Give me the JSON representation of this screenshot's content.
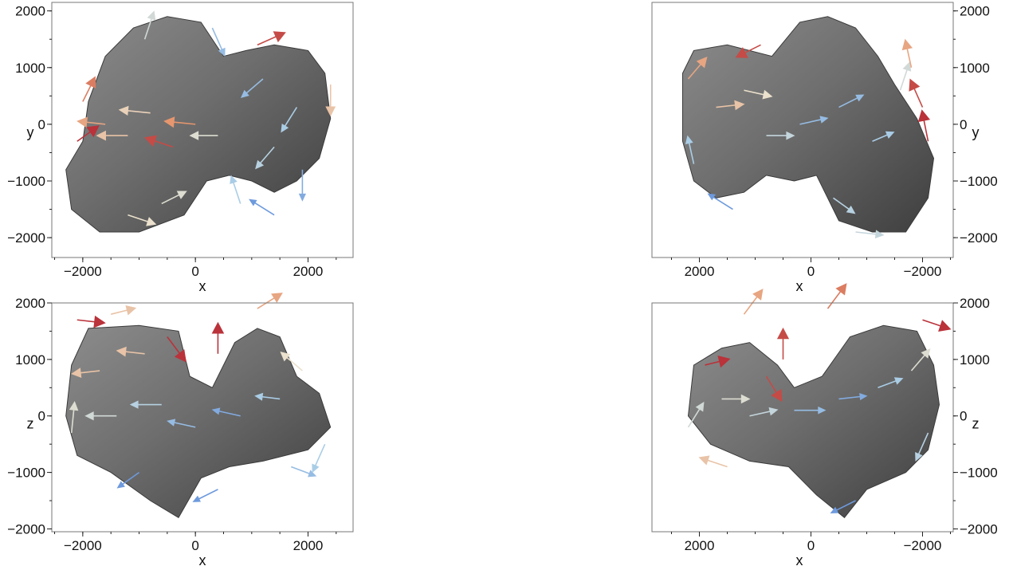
{
  "chart_data": [
    {
      "type": "vector-field",
      "view": "top",
      "xlabel": "x",
      "ylabel": "y",
      "xlim": [
        -2550,
        2800
      ],
      "ylim": [
        -2350,
        2150
      ],
      "x_reversed": false,
      "y_axis_side": "left",
      "xticks": [
        -2000,
        0,
        2000
      ],
      "xtick_labels": [
        "−2000",
        "0",
        "2000"
      ],
      "yticks": [
        2000,
        1000,
        0,
        -1000,
        -2000
      ],
      "ytick_labels": [
        "2000",
        "1000",
        "0",
        "−1000",
        "−2000"
      ],
      "body": [
        [
          -2200,
          -1500
        ],
        [
          -2300,
          -800
        ],
        [
          -2000,
          -300
        ],
        [
          -1900,
          400
        ],
        [
          -1600,
          1200
        ],
        [
          -1100,
          1700
        ],
        [
          -500,
          1900
        ],
        [
          100,
          1800
        ],
        [
          500,
          1200
        ],
        [
          900,
          1300
        ],
        [
          1400,
          1400
        ],
        [
          2000,
          1300
        ],
        [
          2300,
          900
        ],
        [
          2400,
          100
        ],
        [
          2200,
          -600
        ],
        [
          1800,
          -1000
        ],
        [
          1400,
          -1200
        ],
        [
          1000,
          -1000
        ],
        [
          600,
          -900
        ],
        [
          200,
          -1000
        ],
        [
          -200,
          -1600
        ],
        [
          -1000,
          -1900
        ],
        [
          -1700,
          -1900
        ]
      ],
      "arrows": [
        {
          "x": -2100,
          "y": -300,
          "u": 0.7,
          "v": 0.5,
          "m": 0.95
        },
        {
          "x": -2000,
          "y": 400,
          "u": 0.4,
          "v": 0.8,
          "m": 0.8
        },
        {
          "x": -1600,
          "y": 0,
          "u": -0.9,
          "v": 0.1,
          "m": 0.7
        },
        {
          "x": -1200,
          "y": -200,
          "u": -1.0,
          "v": 0.0,
          "m": 0.6
        },
        {
          "x": -800,
          "y": 200,
          "u": -1.0,
          "v": 0.1,
          "m": 0.55
        },
        {
          "x": -400,
          "y": -400,
          "u": -0.9,
          "v": 0.3,
          "m": 0.9
        },
        {
          "x": 0,
          "y": 0,
          "u": -1.0,
          "v": 0.1,
          "m": 0.75
        },
        {
          "x": 400,
          "y": -200,
          "u": -0.9,
          "v": 0.0,
          "m": 0.45
        },
        {
          "x": -1200,
          "y": -1600,
          "u": 0.9,
          "v": -0.3,
          "m": 0.5
        },
        {
          "x": -600,
          "y": -1400,
          "u": 0.8,
          "v": 0.4,
          "m": 0.45
        },
        {
          "x": 1200,
          "y": 800,
          "u": -0.7,
          "v": -0.6,
          "m": 0.2
        },
        {
          "x": 1800,
          "y": 300,
          "u": -0.5,
          "v": -0.8,
          "m": 0.25
        },
        {
          "x": 1400,
          "y": -400,
          "u": -0.6,
          "v": -0.7,
          "m": 0.3
        },
        {
          "x": 1900,
          "y": -800,
          "u": 0.0,
          "v": -1.0,
          "m": 0.15
        },
        {
          "x": 2400,
          "y": 700,
          "u": 0.0,
          "v": -1.0,
          "m": 0.6
        },
        {
          "x": 1100,
          "y": 1400,
          "u": 0.9,
          "v": 0.4,
          "m": 0.9
        },
        {
          "x": 300,
          "y": 1700,
          "u": 0.4,
          "v": -0.9,
          "m": 0.2
        },
        {
          "x": -900,
          "y": 1500,
          "u": 0.3,
          "v": 0.9,
          "m": 0.4
        },
        {
          "x": 800,
          "y": -1400,
          "u": -0.3,
          "v": 0.9,
          "m": 0.25
        },
        {
          "x": 1400,
          "y": -1600,
          "u": -0.8,
          "v": 0.5,
          "m": 0.1
        }
      ]
    },
    {
      "type": "vector-field",
      "view": "bottom",
      "xlabel": "x",
      "ylabel": "y",
      "xlim": [
        2850,
        -2550
      ],
      "ylim": [
        -2350,
        2150
      ],
      "x_reversed": true,
      "y_axis_side": "right",
      "xticks": [
        2000,
        0,
        -2000
      ],
      "xtick_labels": [
        "2000",
        "0",
        "−2000"
      ],
      "yticks": [
        2000,
        1000,
        0,
        -1000,
        -2000
      ],
      "ytick_labels": [
        "2000",
        "1000",
        "0",
        "−1000",
        "−2000"
      ],
      "body": [
        [
          2300,
          900
        ],
        [
          2100,
          1300
        ],
        [
          1500,
          1400
        ],
        [
          700,
          1200
        ],
        [
          200,
          1800
        ],
        [
          -300,
          1900
        ],
        [
          -800,
          1700
        ],
        [
          -1200,
          1200
        ],
        [
          -1500,
          700
        ],
        [
          -1900,
          100
        ],
        [
          -2200,
          -600
        ],
        [
          -2100,
          -1300
        ],
        [
          -1700,
          -1900
        ],
        [
          -1100,
          -1900
        ],
        [
          -500,
          -1700
        ],
        [
          -100,
          -900
        ],
        [
          300,
          -1000
        ],
        [
          800,
          -900
        ],
        [
          1200,
          -1200
        ],
        [
          1700,
          -1300
        ],
        [
          2100,
          -1000
        ],
        [
          2300,
          -300
        ]
      ],
      "arrows": [
        {
          "x": 2200,
          "y": 800,
          "u": -0.6,
          "v": 0.7,
          "m": 0.7
        },
        {
          "x": 1700,
          "y": 300,
          "u": -0.9,
          "v": 0.1,
          "m": 0.6
        },
        {
          "x": 1200,
          "y": 600,
          "u": -0.9,
          "v": -0.2,
          "m": 0.5
        },
        {
          "x": 800,
          "y": -200,
          "u": -0.9,
          "v": 0.0,
          "m": 0.35
        },
        {
          "x": 200,
          "y": 0,
          "u": -0.9,
          "v": 0.2,
          "m": 0.2
        },
        {
          "x": -500,
          "y": 300,
          "u": -0.8,
          "v": 0.4,
          "m": 0.2
        },
        {
          "x": -1100,
          "y": -300,
          "u": -0.7,
          "v": 0.3,
          "m": 0.25
        },
        {
          "x": -1600,
          "y": 600,
          "u": -0.3,
          "v": 0.9,
          "m": 0.4
        },
        {
          "x": 900,
          "y": 1400,
          "u": 0.8,
          "v": -0.4,
          "m": 0.9
        },
        {
          "x": -2100,
          "y": -300,
          "u": 0.2,
          "v": 1.0,
          "m": 0.95
        },
        {
          "x": -2000,
          "y": 300,
          "u": 0.4,
          "v": 0.9,
          "m": 0.9
        },
        {
          "x": -1800,
          "y": 1000,
          "u": 0.2,
          "v": 0.9,
          "m": 0.7
        },
        {
          "x": 1400,
          "y": -1500,
          "u": 0.8,
          "v": 0.5,
          "m": 0.1
        },
        {
          "x": -400,
          "y": -1300,
          "u": -0.7,
          "v": -0.5,
          "m": 0.3
        },
        {
          "x": 2100,
          "y": -700,
          "u": 0.2,
          "v": 0.9,
          "m": 0.25
        },
        {
          "x": -800,
          "y": -1900,
          "u": -0.9,
          "v": -0.1,
          "m": 0.35
        }
      ]
    },
    {
      "type": "vector-field",
      "view": "front",
      "xlabel": "x",
      "ylabel": "z",
      "xlim": [
        -2550,
        2800
      ],
      "ylim": [
        -2050,
        2000
      ],
      "x_reversed": false,
      "y_axis_side": "left",
      "xticks": [
        -2000,
        0,
        2000
      ],
      "xtick_labels": [
        "−2000",
        "0",
        "2000"
      ],
      "yticks": [
        2000,
        1000,
        0,
        -1000,
        -2000
      ],
      "ytick_labels": [
        "2000",
        "1000",
        "0",
        "−1000",
        "−2000"
      ],
      "body": [
        [
          -2200,
          900
        ],
        [
          -1900,
          1550
        ],
        [
          -1000,
          1600
        ],
        [
          -300,
          1500
        ],
        [
          -100,
          700
        ],
        [
          300,
          500
        ],
        [
          700,
          1300
        ],
        [
          1100,
          1550
        ],
        [
          1500,
          1400
        ],
        [
          1800,
          700
        ],
        [
          2200,
          400
        ],
        [
          2400,
          -200
        ],
        [
          2000,
          -600
        ],
        [
          1200,
          -800
        ],
        [
          600,
          -900
        ],
        [
          100,
          -1100
        ],
        [
          -300,
          -1800
        ],
        [
          -800,
          -1500
        ],
        [
          -1500,
          -1000
        ],
        [
          -2100,
          -700
        ],
        [
          -2300,
          0
        ]
      ],
      "arrows": [
        {
          "x": -2100,
          "y": 1700,
          "u": 0.9,
          "v": -0.1,
          "m": 0.95
        },
        {
          "x": -1500,
          "y": 1800,
          "u": 0.8,
          "v": 0.2,
          "m": 0.6
        },
        {
          "x": -500,
          "y": 1400,
          "u": 0.6,
          "v": -0.8,
          "m": 0.95
        },
        {
          "x": 400,
          "y": 1100,
          "u": 0.0,
          "v": 1.0,
          "m": 0.95
        },
        {
          "x": 1100,
          "y": 1900,
          "u": 0.8,
          "v": 0.5,
          "m": 0.7
        },
        {
          "x": -900,
          "y": 1100,
          "u": -0.9,
          "v": 0.1,
          "m": 0.6
        },
        {
          "x": -1700,
          "y": 800,
          "u": -0.9,
          "v": -0.1,
          "m": 0.6
        },
        {
          "x": -1400,
          "y": 0,
          "u": -1.0,
          "v": 0.0,
          "m": 0.4
        },
        {
          "x": -600,
          "y": 200,
          "u": -1.0,
          "v": 0.0,
          "m": 0.3
        },
        {
          "x": 0,
          "y": -200,
          "u": -0.9,
          "v": 0.2,
          "m": 0.2
        },
        {
          "x": 800,
          "y": 0,
          "u": -0.9,
          "v": 0.2,
          "m": 0.15
        },
        {
          "x": 1500,
          "y": 300,
          "u": -0.8,
          "v": 0.1,
          "m": 0.25
        },
        {
          "x": 1900,
          "y": 800,
          "u": -0.7,
          "v": 0.6,
          "m": 0.5
        },
        {
          "x": -1000,
          "y": -1000,
          "u": -0.7,
          "v": -0.5,
          "m": 0.1
        },
        {
          "x": 400,
          "y": -1300,
          "u": -0.8,
          "v": -0.4,
          "m": 0.1
        },
        {
          "x": 1700,
          "y": -900,
          "u": 0.8,
          "v": -0.3,
          "m": 0.2
        },
        {
          "x": 2300,
          "y": -500,
          "u": -0.4,
          "v": -0.9,
          "m": 0.25
        },
        {
          "x": -2200,
          "y": -300,
          "u": 0.1,
          "v": 1.0,
          "m": 0.45
        }
      ]
    },
    {
      "type": "vector-field",
      "view": "back",
      "xlabel": "x",
      "ylabel": "z",
      "xlim": [
        2850,
        -2550
      ],
      "ylim": [
        -2050,
        2000
      ],
      "x_reversed": true,
      "y_axis_side": "right",
      "xticks": [
        2000,
        0,
        -2000
      ],
      "xtick_labels": [
        "2000",
        "0",
        "−2000"
      ],
      "yticks": [
        2000,
        1000,
        0,
        -1000,
        -2000
      ],
      "ytick_labels": [
        "2000",
        "1000",
        "0",
        "−1000",
        "−2000"
      ],
      "body": [
        [
          2200,
          0
        ],
        [
          2100,
          900
        ],
        [
          1600,
          1200
        ],
        [
          1100,
          1300
        ],
        [
          600,
          900
        ],
        [
          300,
          500
        ],
        [
          -200,
          700
        ],
        [
          -700,
          1400
        ],
        [
          -1300,
          1600
        ],
        [
          -1900,
          1500
        ],
        [
          -2200,
          900
        ],
        [
          -2300,
          200
        ],
        [
          -2100,
          -600
        ],
        [
          -1700,
          -1000
        ],
        [
          -1000,
          -1300
        ],
        [
          -600,
          -1800
        ],
        [
          -100,
          -1400
        ],
        [
          400,
          -900
        ],
        [
          1100,
          -800
        ],
        [
          1800,
          -500
        ]
      ],
      "arrows": [
        {
          "x": 1900,
          "y": 900,
          "u": -0.8,
          "v": 0.2,
          "m": 0.95
        },
        {
          "x": 1200,
          "y": 1800,
          "u": -0.6,
          "v": 0.8,
          "m": 0.7
        },
        {
          "x": 800,
          "y": 700,
          "u": -0.5,
          "v": -0.8,
          "m": 0.9
        },
        {
          "x": 500,
          "y": 1000,
          "u": 0.0,
          "v": 1.0,
          "m": 0.9
        },
        {
          "x": -300,
          "y": 1900,
          "u": -0.6,
          "v": 0.8,
          "m": 0.8
        },
        {
          "x": -2000,
          "y": 1700,
          "u": -0.9,
          "v": -0.3,
          "m": 0.95
        },
        {
          "x": 1600,
          "y": 300,
          "u": -0.9,
          "v": 0.0,
          "m": 0.45
        },
        {
          "x": 1100,
          "y": 0,
          "u": -0.9,
          "v": 0.2,
          "m": 0.35
        },
        {
          "x": 300,
          "y": 100,
          "u": -1.0,
          "v": 0.0,
          "m": 0.2
        },
        {
          "x": -500,
          "y": 300,
          "u": -0.9,
          "v": 0.1,
          "m": 0.15
        },
        {
          "x": -1200,
          "y": 500,
          "u": -0.8,
          "v": 0.3,
          "m": 0.25
        },
        {
          "x": -1800,
          "y": 800,
          "u": -0.6,
          "v": 0.7,
          "m": 0.45
        },
        {
          "x": 2200,
          "y": -200,
          "u": -0.5,
          "v": 0.8,
          "m": 0.4
        },
        {
          "x": 1500,
          "y": -900,
          "u": 0.9,
          "v": 0.3,
          "m": 0.6
        },
        {
          "x": -800,
          "y": -1500,
          "u": 0.8,
          "v": -0.4,
          "m": 0.1
        },
        {
          "x": -2100,
          "y": -300,
          "u": 0.4,
          "v": -0.9,
          "m": 0.3
        }
      ]
    }
  ]
}
